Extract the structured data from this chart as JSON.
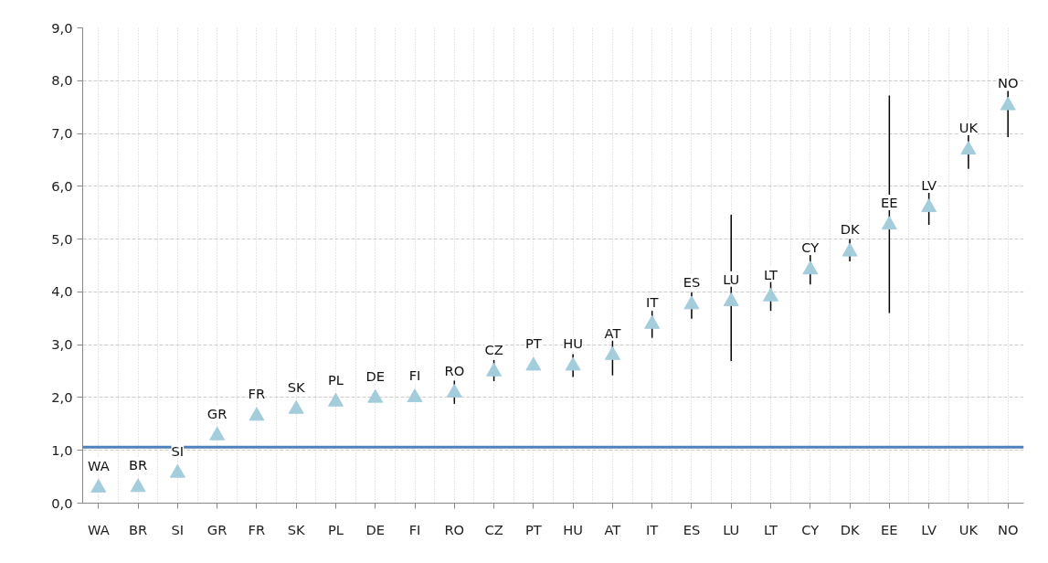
{
  "chart_data": {
    "type": "scatter",
    "categories": [
      "WA",
      "BR",
      "SI",
      "GR",
      "FR",
      "SK",
      "PL",
      "DE",
      "FI",
      "RO",
      "CZ",
      "PT",
      "HU",
      "AT",
      "IT",
      "ES",
      "LU",
      "LT",
      "CY",
      "DK",
      "EE",
      "LV",
      "UK",
      "NO"
    ],
    "series": [
      {
        "color": "#a4cddc",
        "values": [
          0.29,
          0.3,
          0.57,
          1.28,
          1.65,
          1.78,
          1.92,
          1.99,
          2.0,
          2.09,
          2.49,
          2.6,
          2.6,
          2.8,
          3.39,
          3.76,
          3.82,
          3.91,
          4.42,
          4.76,
          5.27,
          5.6,
          6.69,
          7.53
        ],
        "errors": [
          null,
          null,
          null,
          null,
          null,
          null,
          null,
          null,
          null,
          [
            1.88,
            2.32
          ],
          [
            2.31,
            2.71
          ],
          null,
          [
            2.39,
            2.82
          ],
          [
            2.42,
            3.21
          ],
          [
            3.13,
            3.64
          ],
          [
            3.49,
            3.99
          ],
          [
            2.69,
            5.46
          ],
          [
            3.64,
            4.23
          ],
          [
            4.14,
            4.71
          ],
          [
            4.58,
            5.0
          ],
          [
            3.6,
            7.72
          ],
          [
            5.27,
            5.95
          ],
          [
            6.33,
            7.13
          ],
          [
            6.93,
            8.09
          ]
        ]
      }
    ],
    "marker": "triangle",
    "ylim": [
      0,
      9
    ],
    "yticks": [
      {
        "value": 0,
        "label": "0,0"
      },
      {
        "value": 1,
        "label": "1,0"
      },
      {
        "value": 2,
        "label": "2,0"
      },
      {
        "value": 3,
        "label": "3,0"
      },
      {
        "value": 4,
        "label": "4,0"
      },
      {
        "value": 5,
        "label": "5,0"
      },
      {
        "value": 6,
        "label": "6,0"
      },
      {
        "value": 7,
        "label": "7,0"
      },
      {
        "value": 8,
        "label": "8,0"
      },
      {
        "value": 9,
        "label": "9,0"
      }
    ],
    "grid": true,
    "ref_lines": [
      {
        "axis": "y",
        "value": 1.06,
        "label": null,
        "color": "#4f81bd"
      }
    ],
    "annotations": [
      {
        "text": "WA",
        "x": "WA",
        "y": 0.29
      },
      {
        "text": "BR",
        "x": "BR",
        "y": 0.3
      },
      {
        "text": "SI",
        "x": "SI",
        "y": 0.57
      },
      {
        "text": "GR",
        "x": "GR",
        "y": 1.28
      },
      {
        "text": "FR",
        "x": "FR",
        "y": 1.65
      },
      {
        "text": "SK",
        "x": "SK",
        "y": 1.78
      },
      {
        "text": "PL",
        "x": "PL",
        "y": 1.92
      },
      {
        "text": "DE",
        "x": "DE",
        "y": 1.99
      },
      {
        "text": "FI",
        "x": "FI",
        "y": 2.0
      },
      {
        "text": "RO",
        "x": "RO",
        "y": 2.09
      },
      {
        "text": "CZ",
        "x": "CZ",
        "y": 2.49
      },
      {
        "text": "PT",
        "x": "PT",
        "y": 2.6
      },
      {
        "text": "HU",
        "x": "HU",
        "y": 2.6
      },
      {
        "text": "AT",
        "x": "AT",
        "y": 2.8
      },
      {
        "text": "IT",
        "x": "IT",
        "y": 3.39
      },
      {
        "text": "ES",
        "x": "ES",
        "y": 3.76
      },
      {
        "text": "LU",
        "x": "LU",
        "y": 3.82
      },
      {
        "text": "LT",
        "x": "LT",
        "y": 3.91
      },
      {
        "text": "CY",
        "x": "CY",
        "y": 4.42
      },
      {
        "text": "DK",
        "x": "DK",
        "y": 4.76
      },
      {
        "text": "EE",
        "x": "EE",
        "y": 5.27
      },
      {
        "text": "LV",
        "x": "LV",
        "y": 5.6
      },
      {
        "text": "UK",
        "x": "UK",
        "y": 6.69
      },
      {
        "text": "NO",
        "x": "NO",
        "y": 7.53
      }
    ]
  }
}
